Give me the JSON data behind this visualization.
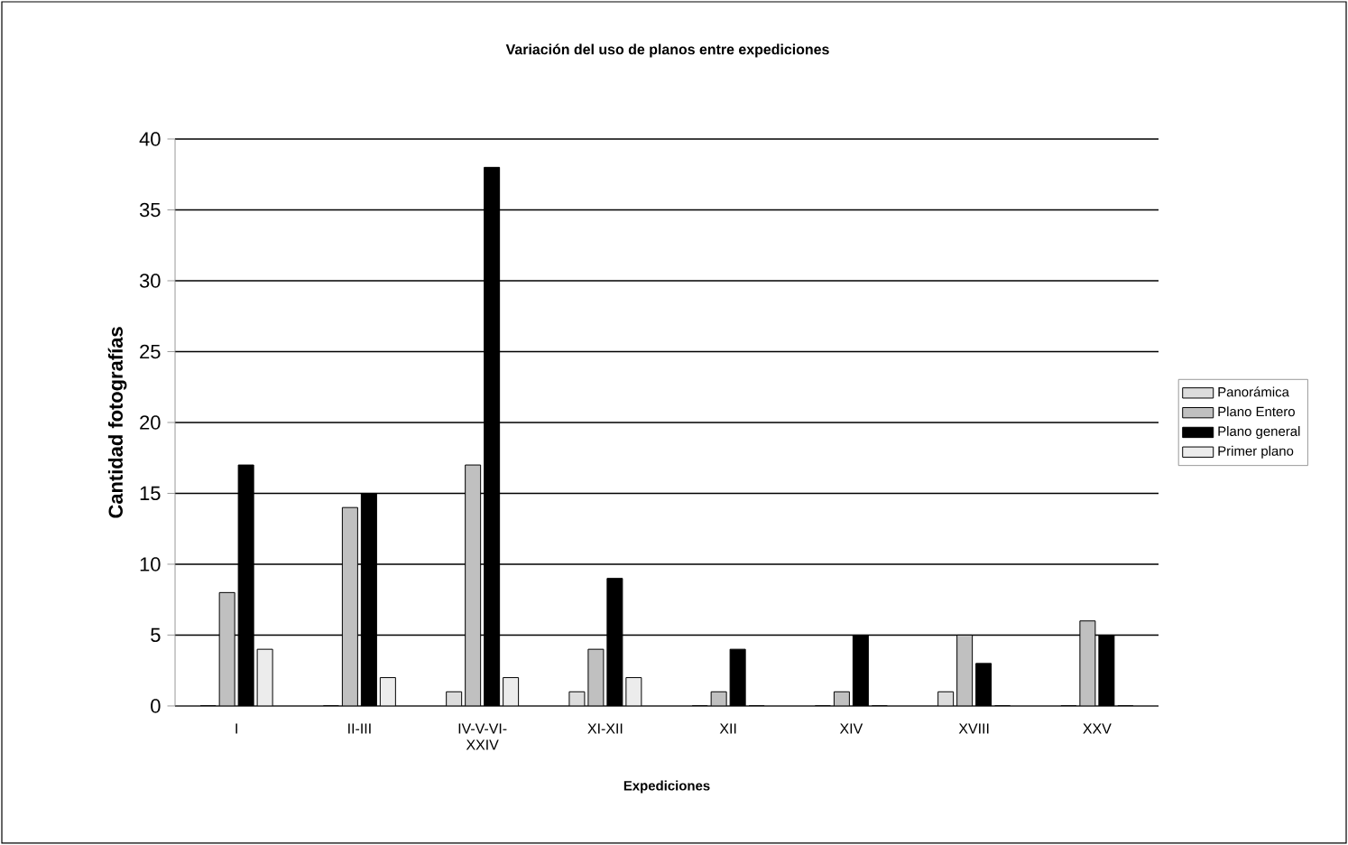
{
  "chart_data": {
    "type": "bar",
    "title": "Variación del uso de planos entre expediciones",
    "xlabel": "Expediciones",
    "ylabel": "Cantidad fotografías",
    "categories": [
      "I",
      "II-III",
      "IV-V-VI-XXIV",
      "XI-XII",
      "XII",
      "XIV",
      "XVIII",
      "XXV"
    ],
    "series": [
      {
        "name": "Panorámica",
        "color": "#dcdcdc",
        "values": [
          0,
          0,
          1,
          1,
          0,
          0,
          1,
          0
        ]
      },
      {
        "name": "Plano Entero",
        "color": "#c0c0c0",
        "values": [
          8,
          14,
          17,
          4,
          1,
          1,
          5,
          6
        ]
      },
      {
        "name": "Plano general",
        "color": "#000000",
        "values": [
          17,
          15,
          38,
          9,
          4,
          5,
          3,
          5
        ]
      },
      {
        "name": "Primer plano",
        "color": "#ececec",
        "values": [
          4,
          2,
          2,
          2,
          0,
          0,
          0,
          0
        ]
      }
    ],
    "ylim": [
      0,
      40
    ],
    "yticks": [
      0,
      5,
      10,
      15,
      20,
      25,
      30,
      35,
      40
    ],
    "grid": "y",
    "legend": "right"
  }
}
